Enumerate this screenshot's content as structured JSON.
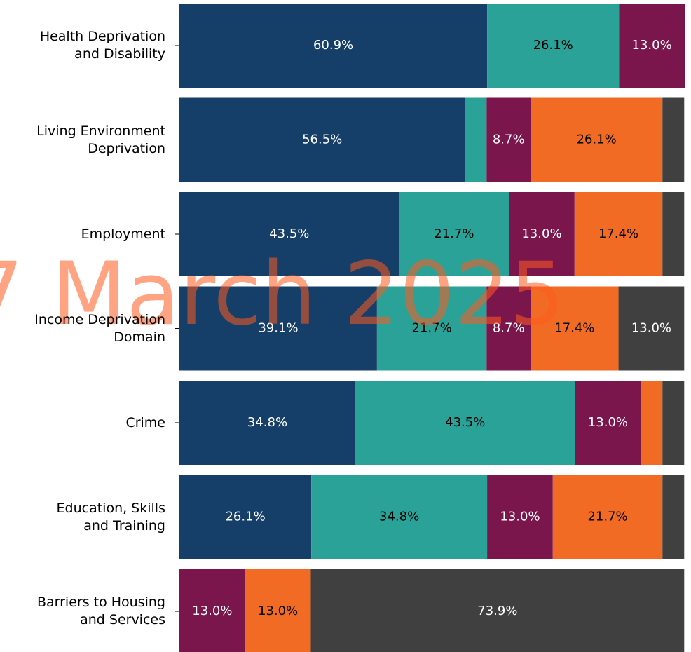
{
  "chart_data": {
    "type": "stacked_barh",
    "categories": [
      "Health Deprivation\nand Disability",
      "Living Environment\nDeprivation",
      "Employment",
      "Income Deprivation\nDomain",
      "Crime",
      "Education, Skills\nand Training",
      "Barriers to Housing\nand Services"
    ],
    "xlim": [
      0,
      100
    ],
    "series": [
      {
        "color": "#153f68",
        "label_color": "#ffffff",
        "values": [
          60.9,
          56.5,
          43.5,
          39.1,
          34.8,
          26.1,
          null
        ],
        "value_labels": [
          "60.9%",
          "56.5%",
          "43.5%",
          "39.1%",
          "34.8%",
          "26.1%",
          null
        ]
      },
      {
        "color": "#2aa297",
        "label_color": "#000000",
        "values": [
          26.1,
          4.3,
          21.7,
          21.7,
          43.5,
          34.8,
          null
        ],
        "value_labels": [
          "26.1%",
          null,
          "21.7%",
          "21.7%",
          "43.5%",
          "34.8%",
          null
        ]
      },
      {
        "color": "#7b164d",
        "label_color": "#ffffff",
        "values": [
          13.0,
          8.7,
          13.0,
          8.7,
          13.0,
          13.0,
          13.0
        ],
        "value_labels": [
          "13.0%",
          "8.7%",
          "13.0%",
          "8.7%",
          "13.0%",
          "13.0%",
          "13.0%"
        ]
      },
      {
        "color": "#f26b25",
        "label_color": "#000000",
        "values": [
          null,
          26.1,
          17.4,
          17.4,
          4.3,
          21.7,
          13.0
        ],
        "value_labels": [
          null,
          "26.1%",
          "17.4%",
          "17.4%",
          null,
          "21.7%",
          "13.0%"
        ]
      },
      {
        "color": "#404040",
        "label_color": "#ffffff",
        "values": [
          null,
          4.3,
          4.3,
          13.0,
          4.3,
          4.3,
          73.9
        ],
        "value_labels": [
          null,
          null,
          null,
          "13.0%",
          null,
          null,
          "73.9%"
        ]
      }
    ],
    "annotations": [
      "7 March 2025"
    ]
  }
}
